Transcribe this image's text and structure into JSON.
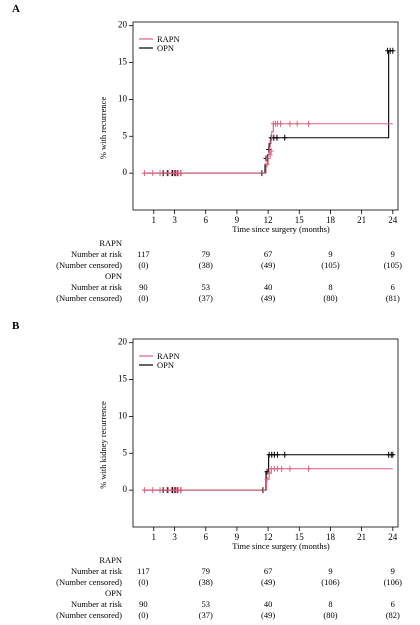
{
  "chart_data": [
    {
      "panel_label": "A",
      "type": "line",
      "step": true,
      "ylabel": "% with recurrence",
      "xlabel": "Time since surgery (months)",
      "xlim": [
        -1,
        24.5
      ],
      "ylim": [
        -5,
        20.5
      ],
      "x_ticks": [
        1,
        3,
        6,
        9,
        12,
        15,
        18,
        21,
        24
      ],
      "y_ticks": [
        0,
        5,
        10,
        15,
        20
      ],
      "legend_position": "top-left",
      "colors": {
        "RAPN": "#e0607e",
        "OPN": "#000000"
      },
      "series": [
        {
          "name": "RAPN",
          "steps": [
            [
              0,
              0
            ],
            [
              11.8,
              0
            ],
            [
              11.8,
              1.2
            ],
            [
              12.0,
              2.5
            ],
            [
              12.1,
              3.5
            ],
            [
              12.2,
              4.5
            ],
            [
              12.35,
              5.6
            ],
            [
              12.5,
              6.7
            ],
            [
              24,
              6.7
            ]
          ],
          "censored": [
            [
              0.1,
              0
            ],
            [
              0.9,
              0
            ],
            [
              1.6,
              0
            ],
            [
              2.4,
              0
            ],
            [
              2.7,
              0
            ],
            [
              2.95,
              0
            ],
            [
              3.15,
              0
            ],
            [
              3.35,
              0
            ],
            [
              3.6,
              0
            ],
            [
              11.9,
              1.2
            ],
            [
              12.0,
              2.0
            ],
            [
              12.2,
              2.5
            ],
            [
              12.3,
              3.0
            ],
            [
              12.5,
              6.7
            ],
            [
              12.7,
              6.7
            ],
            [
              12.9,
              6.7
            ],
            [
              13.2,
              6.7
            ],
            [
              14.1,
              6.7
            ],
            [
              14.8,
              6.7
            ],
            [
              15.9,
              6.7
            ]
          ]
        },
        {
          "name": "OPN",
          "steps": [
            [
              0,
              0
            ],
            [
              11.7,
              0
            ],
            [
              11.7,
              1.2
            ],
            [
              11.95,
              2.5
            ],
            [
              12.1,
              4.0
            ],
            [
              12.25,
              4.8
            ],
            [
              23.6,
              4.8
            ],
            [
              23.6,
              16.6
            ],
            [
              24,
              16.6
            ]
          ],
          "censored": [
            [
              1.9,
              0
            ],
            [
              2.3,
              0
            ],
            [
              2.8,
              0
            ],
            [
              3.05,
              0
            ],
            [
              3.3,
              0
            ],
            [
              3.6,
              0
            ],
            [
              11.4,
              0
            ],
            [
              11.8,
              2.0
            ],
            [
              12.05,
              3.2
            ],
            [
              12.3,
              4.8
            ],
            [
              12.55,
              4.8
            ],
            [
              12.85,
              4.8
            ],
            [
              13.6,
              4.8
            ],
            [
              23.5,
              16.6
            ],
            [
              23.75,
              16.6
            ],
            [
              24.0,
              16.6
            ]
          ]
        }
      ],
      "risk_table": {
        "times": [
          1,
          6,
          12,
          18,
          24
        ],
        "groups": [
          {
            "name": "RAPN",
            "at_risk_label": "Number at risk",
            "censored_label": "(Number censored)",
            "at_risk": [
              "117",
              "79",
              "67",
              "9",
              "9"
            ],
            "censored": [
              "(0)",
              "(38)",
              "(49)",
              "(105)",
              "(105)"
            ]
          },
          {
            "name": "OPN",
            "at_risk_label": "Number at risk",
            "censored_label": "(Number censored)",
            "at_risk": [
              "90",
              "53",
              "40",
              "8",
              "6"
            ],
            "censored": [
              "(0)",
              "(37)",
              "(49)",
              "(80)",
              "(81)"
            ]
          }
        ]
      }
    },
    {
      "panel_label": "B",
      "type": "line",
      "step": true,
      "ylabel": "% with kidney recurrence",
      "xlabel": "Time since surgery (months)",
      "xlim": [
        -1,
        24.5
      ],
      "ylim": [
        -5,
        20.5
      ],
      "x_ticks": [
        1,
        3,
        6,
        9,
        12,
        15,
        18,
        21,
        24
      ],
      "y_ticks": [
        0,
        5,
        10,
        15,
        20
      ],
      "legend_position": "top-left",
      "colors": {
        "RAPN": "#e0607e",
        "OPN": "#000000"
      },
      "series": [
        {
          "name": "RAPN",
          "steps": [
            [
              0,
              0
            ],
            [
              11.85,
              0
            ],
            [
              11.85,
              1.5
            ],
            [
              12.1,
              2.3
            ],
            [
              12.3,
              2.9
            ],
            [
              24,
              2.9
            ]
          ],
          "censored": [
            [
              0.1,
              0
            ],
            [
              0.9,
              0
            ],
            [
              1.6,
              0
            ],
            [
              2.4,
              0
            ],
            [
              2.7,
              0
            ],
            [
              2.95,
              0
            ],
            [
              3.15,
              0
            ],
            [
              3.35,
              0
            ],
            [
              3.6,
              0
            ],
            [
              11.9,
              1.5
            ],
            [
              12.1,
              2.3
            ],
            [
              12.3,
              2.9
            ],
            [
              12.6,
              2.9
            ],
            [
              12.9,
              2.9
            ],
            [
              13.3,
              2.9
            ],
            [
              14.1,
              2.9
            ],
            [
              15.9,
              2.9
            ]
          ]
        },
        {
          "name": "OPN",
          "steps": [
            [
              0,
              0
            ],
            [
              11.8,
              0
            ],
            [
              11.8,
              2.5
            ],
            [
              12.05,
              4.8
            ],
            [
              24,
              4.8
            ]
          ],
          "censored": [
            [
              1.9,
              0
            ],
            [
              2.3,
              0
            ],
            [
              2.8,
              0
            ],
            [
              3.05,
              0
            ],
            [
              3.3,
              0
            ],
            [
              3.6,
              0
            ],
            [
              11.5,
              0
            ],
            [
              11.9,
              2.5
            ],
            [
              12.1,
              4.8
            ],
            [
              12.35,
              4.8
            ],
            [
              12.6,
              4.8
            ],
            [
              12.9,
              4.8
            ],
            [
              13.6,
              4.8
            ],
            [
              23.6,
              4.8
            ],
            [
              23.85,
              4.8
            ],
            [
              24.0,
              4.8
            ]
          ]
        }
      ],
      "risk_table": {
        "times": [
          1,
          6,
          12,
          18,
          24
        ],
        "groups": [
          {
            "name": "RAPN",
            "at_risk_label": "Number at risk",
            "censored_label": "(Number censored)",
            "at_risk": [
              "117",
              "79",
              "67",
              "9",
              "9"
            ],
            "censored": [
              "(0)",
              "(38)",
              "(49)",
              "(106)",
              "(106)"
            ]
          },
          {
            "name": "OPN",
            "at_risk_label": "Number at risk",
            "censored_label": "(Number censored)",
            "at_risk": [
              "90",
              "53",
              "40",
              "8",
              "6"
            ],
            "censored": [
              "(0)",
              "(37)",
              "(49)",
              "(80)",
              "(82)"
            ]
          }
        ]
      }
    }
  ]
}
